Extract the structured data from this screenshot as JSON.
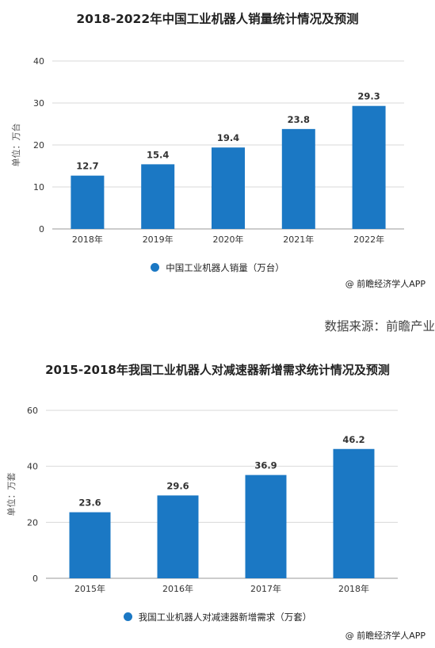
{
  "chart_data": [
    {
      "type": "bar",
      "title": "2018-2022年中国工业机器人销量统计情况及预测",
      "categories": [
        "2018年",
        "2019年",
        "2020年",
        "2021年",
        "2022年"
      ],
      "series": [
        {
          "name": "中国工业机器人销量（万台）",
          "values": [
            12.7,
            15.4,
            19.4,
            23.8,
            29.3
          ]
        }
      ],
      "value_labels": [
        "12.7",
        "15.4",
        "19.4",
        "23.8",
        "29.3"
      ],
      "ylabel": "单位：万台",
      "ylim": [
        0,
        40
      ],
      "yticks": [
        "0",
        "10",
        "20",
        "30",
        "40"
      ],
      "grid": true,
      "legend": "bottom",
      "color": "#1b78c4"
    },
    {
      "type": "bar",
      "title": "2015-2018年我国工业机器人对减速器新增需求统计情况及预测",
      "categories": [
        "2015年",
        "2016年",
        "2017年",
        "2018年"
      ],
      "series": [
        {
          "name": "我国工业机器人对减速器新增需求（万套）",
          "values": [
            23.6,
            29.6,
            36.9,
            46.2
          ]
        }
      ],
      "value_labels": [
        "23.6",
        "29.6",
        "36.9",
        "46.2"
      ],
      "ylabel": "单位：万套",
      "ylim": [
        0,
        60
      ],
      "yticks": [
        "0",
        "20",
        "40",
        "60"
      ],
      "grid": true,
      "legend": "bottom",
      "color": "#1b78c4"
    }
  ],
  "credits": [
    "@ 前瞻经济学人APP",
    "@ 前瞻经济学人APP"
  ],
  "source_note": "数据来源：前瞻产业"
}
